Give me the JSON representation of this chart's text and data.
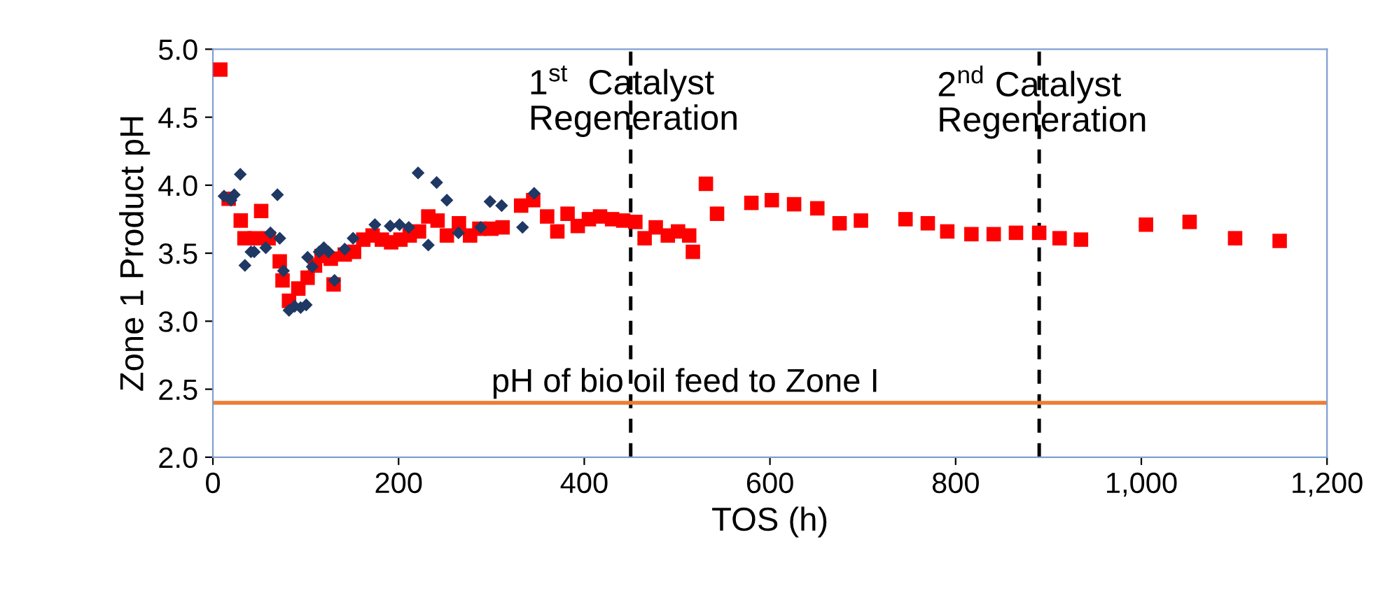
{
  "chart_data": {
    "type": "scatter",
    "xlabel": "TOS (h)",
    "ylabel": "Zone 1 Product pH",
    "xlim": [
      0,
      1200
    ],
    "ylim": [
      2.0,
      5.0
    ],
    "xticks": [
      {
        "value": 0,
        "label": "0"
      },
      {
        "value": 200,
        "label": "200"
      },
      {
        "value": 400,
        "label": "400"
      },
      {
        "value": 600,
        "label": "600"
      },
      {
        "value": 800,
        "label": "800"
      },
      {
        "value": 1000,
        "label": "1,000"
      },
      {
        "value": 1200,
        "label": "1,200"
      }
    ],
    "yticks": [
      {
        "value": 2.0,
        "label": "2.0"
      },
      {
        "value": 2.5,
        "label": "2.5"
      },
      {
        "value": 3.0,
        "label": "3.0"
      },
      {
        "value": 3.5,
        "label": "3.5"
      },
      {
        "value": 4.0,
        "label": "4.0"
      },
      {
        "value": 4.5,
        "label": "4.5"
      },
      {
        "value": 5.0,
        "label": "5.0"
      }
    ],
    "grid": false,
    "legend": false,
    "series": [
      {
        "color": "#1f3864",
        "marker": "diamond",
        "x": [
          12,
          19.5,
          23,
          29.5,
          34.5,
          41,
          44.5,
          57,
          62,
          69.5,
          72,
          76,
          82,
          88,
          94.5,
          100.5,
          102,
          107,
          114.5,
          119.5,
          124.5,
          131,
          142,
          151,
          174.5,
          191,
          201,
          211,
          221,
          232,
          241,
          252,
          264.5,
          288.5,
          298.5,
          311,
          333.5,
          346
        ],
        "values": [
          3.92,
          3.89,
          3.93,
          4.08,
          3.41,
          3.51,
          3.51,
          3.54,
          3.65,
          3.93,
          3.61,
          3.37,
          3.08,
          3.11,
          3.1,
          3.12,
          3.47,
          3.4,
          3.51,
          3.54,
          3.51,
          3.3,
          3.53,
          3.61,
          3.71,
          3.7,
          3.71,
          3.69,
          4.09,
          3.56,
          4.02,
          3.89,
          3.65,
          3.69,
          3.88,
          3.85,
          3.69,
          3.94
        ]
      },
      {
        "color": "#ff0000",
        "marker": "square",
        "x": [
          8,
          17,
          30,
          34,
          45,
          52,
          60,
          72,
          75,
          82,
          92,
          102,
          110,
          117,
          127,
          130,
          142,
          152,
          162,
          172,
          182,
          192,
          202,
          212,
          222,
          232,
          242,
          252,
          265,
          277,
          287,
          300,
          312,
          332,
          345,
          360,
          371,
          382,
          393,
          405,
          417,
          430,
          442,
          455,
          465,
          477,
          490,
          501,
          513,
          517,
          531,
          543,
          580,
          602,
          626,
          651,
          675,
          698,
          746,
          770,
          791,
          817,
          841,
          865,
          890,
          912,
          935,
          1005,
          1052,
          1101,
          1149
        ],
        "values": [
          4.85,
          3.9,
          3.74,
          3.61,
          3.61,
          3.81,
          3.61,
          3.44,
          3.3,
          3.15,
          3.24,
          3.32,
          3.41,
          3.48,
          3.46,
          3.27,
          3.49,
          3.51,
          3.6,
          3.63,
          3.6,
          3.58,
          3.6,
          3.63,
          3.66,
          3.77,
          3.74,
          3.63,
          3.72,
          3.63,
          3.68,
          3.68,
          3.69,
          3.85,
          3.89,
          3.77,
          3.66,
          3.79,
          3.7,
          3.75,
          3.77,
          3.75,
          3.74,
          3.73,
          3.61,
          3.69,
          3.63,
          3.66,
          3.63,
          3.51,
          4.01,
          3.79,
          3.87,
          3.89,
          3.86,
          3.83,
          3.72,
          3.74,
          3.75,
          3.72,
          3.66,
          3.64,
          3.64,
          3.65,
          3.65,
          3.61,
          3.6,
          3.71,
          3.73,
          3.61,
          3.59
        ]
      }
    ],
    "ref_lines": [
      {
        "axis": "x",
        "value": 450,
        "label": "1$^{st}$  Catalyst\nRegeneration",
        "color": "#000000",
        "line_style": "dashed"
      },
      {
        "axis": "x",
        "value": 890,
        "label": "2$^{nd}$ Catalyst\nRegeneration",
        "color": "#000000",
        "line_style": "dashed"
      },
      {
        "axis": "y",
        "value": 2.4,
        "label": "pH of bio oil feed to Zone I",
        "color": "#ed7d31",
        "line_style": "solid"
      }
    ]
  }
}
